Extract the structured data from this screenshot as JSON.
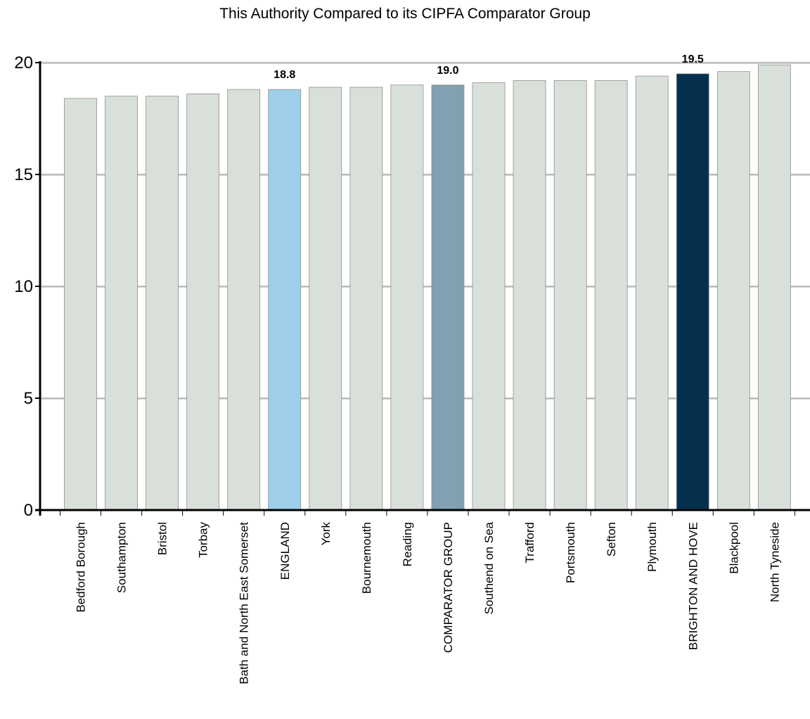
{
  "chart_data": {
    "type": "bar",
    "title": "This Authority Compared to its CIPFA Comparator Group",
    "xlabel": "",
    "ylabel": "",
    "ylim": [
      0,
      20
    ],
    "yticks": [
      0,
      5,
      10,
      15,
      20
    ],
    "grid": true,
    "categories": [
      "Bedford Borough",
      "Southampton",
      "Bristol",
      "Torbay",
      "Bath and North East Somerset",
      "ENGLAND",
      "York",
      "Bournemouth",
      "Reading",
      "COMPARATOR GROUP",
      "Southend on Sea",
      "Trafford",
      "Portsmouth",
      "Sefton",
      "Plymouth",
      "BRIGHTON AND HOVE",
      "Blackpool",
      "North Tyneside"
    ],
    "values": [
      18.4,
      18.5,
      18.5,
      18.6,
      18.8,
      18.8,
      18.9,
      18.9,
      19.0,
      19.0,
      19.1,
      19.2,
      19.2,
      19.2,
      19.4,
      19.5,
      19.6,
      19.9
    ],
    "data_labels": [
      {
        "category": "ENGLAND",
        "text": "18.8"
      },
      {
        "category": "COMPARATOR GROUP",
        "text": "19.0"
      },
      {
        "category": "BRIGHTON AND HOVE",
        "text": "19.5"
      }
    ],
    "colors": {
      "default": "#d9e0d9",
      "ENGLAND": "#9fcfe8",
      "COMPARATOR GROUP": "#7fa1b1",
      "BRIGHTON AND HOVE": "#04304e",
      "gridline": "#b3b3b3",
      "axis": "#000000"
    }
  }
}
